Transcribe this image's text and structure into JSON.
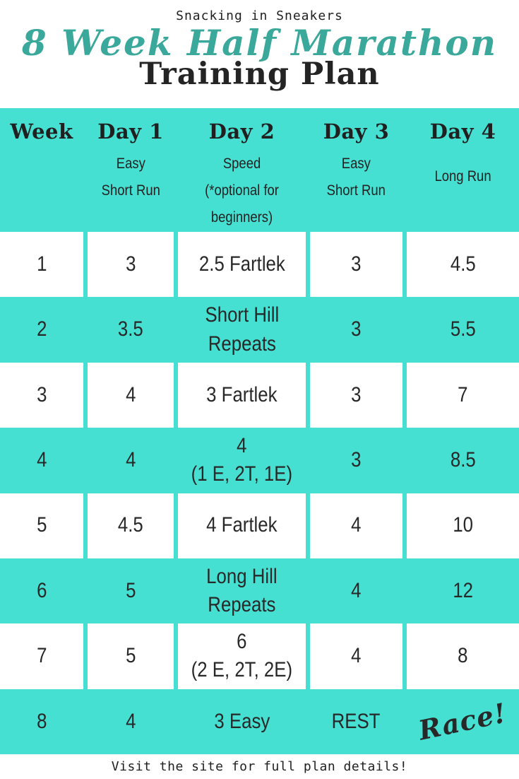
{
  "masthead": {
    "site_name": "Snacking in Sneakers",
    "title_script": "8 Week Half Marathon",
    "title_main": "Training Plan"
  },
  "colors": {
    "table_teal": "#46e0d2",
    "script_teal": "#3aa89a",
    "text_dark": "#282828"
  },
  "table": {
    "columns": [
      {
        "label": "Week",
        "sub": ""
      },
      {
        "label": "Day 1",
        "sub": "Easy\nShort Run"
      },
      {
        "label": "Day 2",
        "sub": "Speed\n(*optional for\nbeginners)"
      },
      {
        "label": "Day 3",
        "sub": "Easy\nShort Run"
      },
      {
        "label": "Day 4",
        "sub": "Long Run"
      }
    ],
    "rows": [
      [
        "1",
        "3",
        "2.5 Fartlek",
        "3",
        "4.5"
      ],
      [
        "2",
        "3.5",
        "Short Hill\nRepeats",
        "3",
        "5.5"
      ],
      [
        "3",
        "4",
        "3 Fartlek",
        "3",
        "7"
      ],
      [
        "4",
        "4",
        "4\n(1 E, 2T, 1E)",
        "3",
        "8.5"
      ],
      [
        "5",
        "4.5",
        "4 Fartlek",
        "4",
        "10"
      ],
      [
        "6",
        "5",
        "Long Hill\nRepeats",
        "4",
        "12"
      ],
      [
        "7",
        "5",
        "6\n(2 E, 2T, 2E)",
        "4",
        "8"
      ],
      [
        "8",
        "4",
        "3 Easy",
        "REST",
        "Race!"
      ]
    ]
  },
  "footer": {
    "note": "Visit the site for full plan details!"
  }
}
